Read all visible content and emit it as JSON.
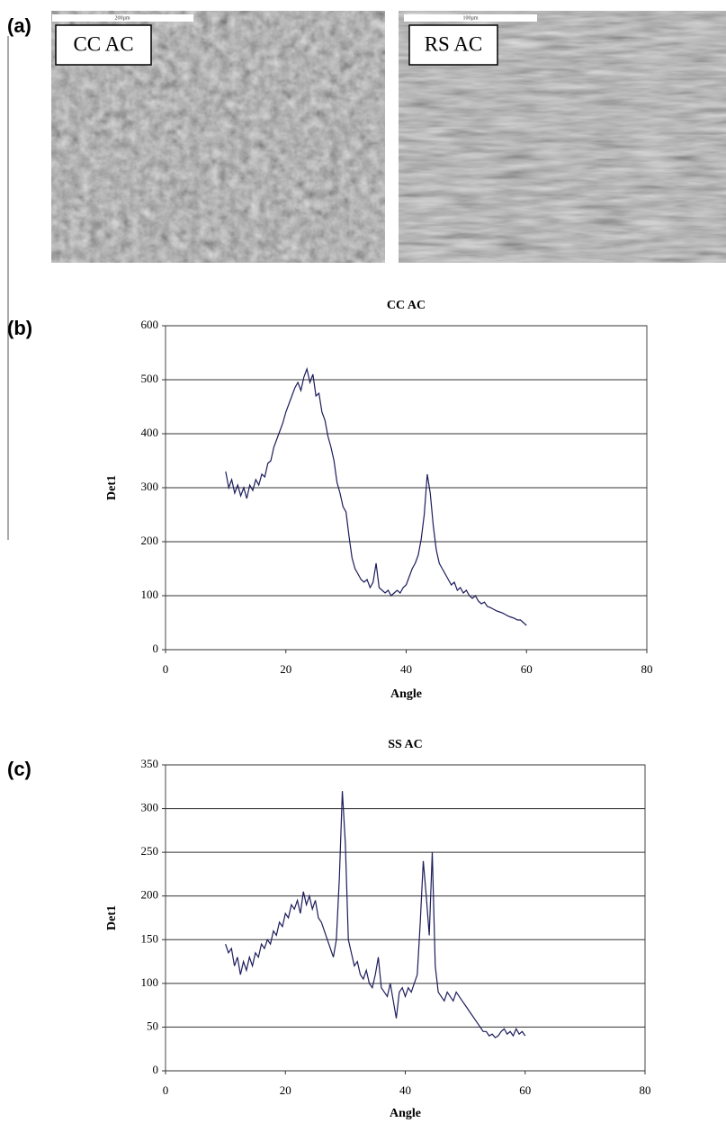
{
  "figure": {
    "panel_labels": [
      "(a)",
      "(b)",
      "(c)"
    ],
    "images": [
      {
        "label": "CC AC",
        "scale": "200µm"
      },
      {
        "label": "RS AC",
        "scale": "100µm"
      }
    ]
  },
  "chart_data": [
    {
      "type": "line",
      "title": "CC AC",
      "x_label": "Angle",
      "y_label": "Det1",
      "color": "#1c1c5c",
      "grid": true,
      "xlim": [
        0,
        80
      ],
      "xticks": [
        0,
        20,
        40,
        60,
        80
      ],
      "ylim": [
        0,
        600
      ],
      "yticks": [
        0,
        100,
        200,
        300,
        400,
        500,
        600
      ],
      "x": [
        10,
        10.5,
        11,
        11.5,
        12,
        12.5,
        13,
        13.5,
        14,
        14.5,
        15,
        15.5,
        16,
        16.5,
        17,
        17.5,
        18,
        18.5,
        19,
        19.5,
        20,
        20.5,
        21,
        21.5,
        22,
        22.5,
        23,
        23.5,
        24,
        24.5,
        25,
        25.5,
        26,
        26.5,
        27,
        27.5,
        28,
        28.5,
        29,
        29.5,
        30,
        30.5,
        31,
        31.5,
        32,
        32.5,
        33,
        33.5,
        34,
        34.5,
        35,
        35.5,
        36,
        36.5,
        37,
        37.5,
        38,
        38.5,
        39,
        39.5,
        40,
        40.5,
        41,
        41.5,
        42,
        42.5,
        43,
        43.5,
        44,
        44.5,
        45,
        45.5,
        46,
        46.5,
        47,
        47.5,
        48,
        48.5,
        49,
        49.5,
        50,
        50.5,
        51,
        51.5,
        52,
        52.5,
        53,
        53.5,
        54,
        54.5,
        55,
        55.5,
        56,
        56.5,
        57,
        57.5,
        58,
        58.5,
        59,
        59.5,
        60
      ],
      "values": [
        330,
        300,
        315,
        290,
        305,
        285,
        300,
        280,
        305,
        295,
        315,
        305,
        325,
        320,
        345,
        350,
        375,
        390,
        405,
        420,
        440,
        455,
        470,
        485,
        495,
        480,
        505,
        520,
        495,
        510,
        470,
        475,
        440,
        425,
        395,
        375,
        350,
        310,
        290,
        265,
        255,
        210,
        170,
        150,
        140,
        130,
        125,
        130,
        115,
        125,
        160,
        115,
        110,
        105,
        110,
        100,
        105,
        110,
        105,
        115,
        120,
        135,
        150,
        160,
        175,
        205,
        250,
        325,
        290,
        230,
        185,
        160,
        150,
        140,
        130,
        120,
        125,
        110,
        115,
        105,
        110,
        100,
        95,
        100,
        90,
        85,
        88,
        80,
        78,
        75,
        72,
        70,
        68,
        65,
        62,
        60,
        58,
        55,
        55,
        50,
        45
      ]
    },
    {
      "type": "line",
      "title": "SS AC",
      "x_label": "Angle",
      "y_label": "Det1",
      "color": "#1c1c5c",
      "grid": true,
      "xlim": [
        0,
        80
      ],
      "xticks": [
        0,
        20,
        40,
        60,
        80
      ],
      "ylim": [
        0,
        350
      ],
      "yticks": [
        0,
        50,
        100,
        150,
        200,
        250,
        300,
        350
      ],
      "x": [
        10,
        10.5,
        11,
        11.5,
        12,
        12.5,
        13,
        13.5,
        14,
        14.5,
        15,
        15.5,
        16,
        16.5,
        17,
        17.5,
        18,
        18.5,
        19,
        19.5,
        20,
        20.5,
        21,
        21.5,
        22,
        22.5,
        23,
        23.5,
        24,
        24.5,
        25,
        25.5,
        26,
        26.5,
        27,
        27.5,
        28,
        28.5,
        29,
        29.5,
        30,
        30.5,
        31,
        31.5,
        32,
        32.5,
        33,
        33.5,
        34,
        34.5,
        35,
        35.5,
        36,
        36.5,
        37,
        37.5,
        38,
        38.5,
        39,
        39.5,
        40,
        40.5,
        41,
        41.5,
        42,
        42.5,
        43,
        43.5,
        44,
        44.5,
        45,
        45.5,
        46,
        46.5,
        47,
        47.5,
        48,
        48.5,
        49,
        49.5,
        50,
        50.5,
        51,
        51.5,
        52,
        52.5,
        53,
        53.5,
        54,
        54.5,
        55,
        55.5,
        56,
        56.5,
        57,
        57.5,
        58,
        58.5,
        59,
        59.5,
        60
      ],
      "values": [
        145,
        135,
        140,
        120,
        130,
        110,
        125,
        115,
        130,
        120,
        135,
        130,
        145,
        140,
        150,
        145,
        160,
        155,
        170,
        165,
        180,
        175,
        190,
        185,
        195,
        180,
        205,
        190,
        200,
        185,
        195,
        175,
        170,
        160,
        150,
        140,
        130,
        150,
        220,
        320,
        260,
        150,
        135,
        120,
        125,
        110,
        105,
        115,
        100,
        95,
        110,
        130,
        95,
        90,
        85,
        100,
        80,
        60,
        90,
        95,
        85,
        95,
        90,
        100,
        110,
        170,
        240,
        200,
        155,
        250,
        120,
        90,
        85,
        80,
        90,
        85,
        80,
        90,
        85,
        80,
        75,
        70,
        65,
        60,
        55,
        50,
        45,
        45,
        40,
        42,
        38,
        40,
        45,
        48,
        42,
        45,
        40,
        48,
        42,
        45,
        40
      ]
    }
  ]
}
